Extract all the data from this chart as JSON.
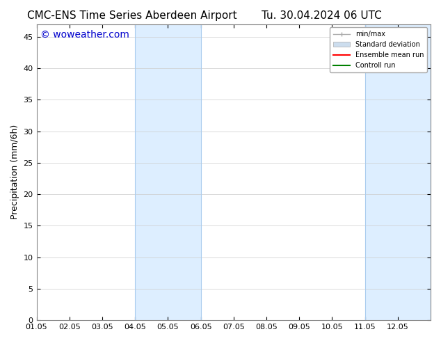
{
  "title_left": "CMC-ENS Time Series Aberdeen Airport",
  "title_right": "Tu. 30.04.2024 06 UTC",
  "ylabel": "Precipitation (mm/6h)",
  "watermark": "© woweather.com",
  "watermark_color": "#0000cc",
  "xlim_start": 0,
  "xlim_end": 12,
  "ylim": [
    0,
    47
  ],
  "yticks": [
    0,
    5,
    10,
    15,
    20,
    25,
    30,
    35,
    40,
    45
  ],
  "xtick_labels": [
    "01.05",
    "02.05",
    "03.05",
    "04.05",
    "05.05",
    "06.05",
    "07.05",
    "08.05",
    "09.05",
    "10.05",
    "11.05",
    "12.05"
  ],
  "xtick_positions": [
    0,
    1,
    2,
    3,
    4,
    5,
    6,
    7,
    8,
    9,
    10,
    11
  ],
  "shade_regions": [
    {
      "x_start": 3,
      "x_end": 5,
      "color": "#ddeeff"
    },
    {
      "x_start": 10,
      "x_end": 12,
      "color": "#ddeeff"
    }
  ],
  "shade_line_color": "#aaccee",
  "bg_color": "#ffffff",
  "legend_items": [
    {
      "label": "min/max",
      "color": "#aaaaaa",
      "lw": 1
    },
    {
      "label": "Standard deviation",
      "color": "#ccddee",
      "lw": 8
    },
    {
      "label": "Ensemble mean run",
      "color": "#ff0000",
      "lw": 1.5
    },
    {
      "label": "Controll run",
      "color": "#008000",
      "lw": 1.5
    }
  ],
  "title_fontsize": 11,
  "tick_label_fontsize": 8,
  "ylabel_fontsize": 9,
  "watermark_fontsize": 10
}
